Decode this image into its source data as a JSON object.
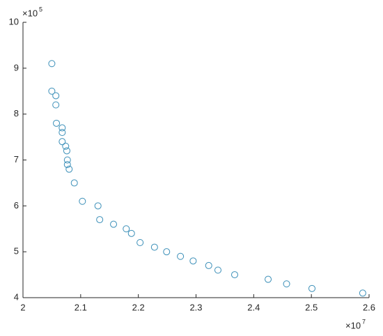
{
  "chart_data": {
    "type": "scatter",
    "x": [
      2.05,
      2.05,
      2.057,
      2.057,
      2.058,
      2.068,
      2.068,
      2.068,
      2.074,
      2.076,
      2.077,
      2.077,
      2.08,
      2.089,
      2.103,
      2.13,
      2.133,
      2.157,
      2.179,
      2.188,
      2.203,
      2.228,
      2.249,
      2.273,
      2.295,
      2.322,
      2.338,
      2.367,
      2.425,
      2.457,
      2.501,
      2.589
    ],
    "values": [
      9.1,
      8.5,
      8.4,
      8.2,
      7.8,
      7.7,
      7.6,
      7.4,
      7.3,
      7.2,
      7.0,
      6.9,
      6.8,
      6.5,
      6.1,
      6.0,
      5.7,
      5.6,
      5.5,
      5.4,
      5.2,
      5.1,
      5.0,
      4.9,
      4.8,
      4.7,
      4.6,
      4.5,
      4.4,
      4.3,
      4.2,
      4.1
    ],
    "color": "#3b8fb8",
    "xlim": [
      2,
      2.6
    ],
    "xticks": [
      2,
      2.1,
      2.2,
      2.3,
      2.4,
      2.5,
      2.6
    ],
    "ylim": [
      4,
      10
    ],
    "yticks": [
      4,
      5,
      6,
      7,
      8,
      9,
      10
    ],
    "x_multiplier": "×10",
    "x_exponent": "7",
    "y_multiplier": "×10",
    "y_exponent": "5"
  }
}
